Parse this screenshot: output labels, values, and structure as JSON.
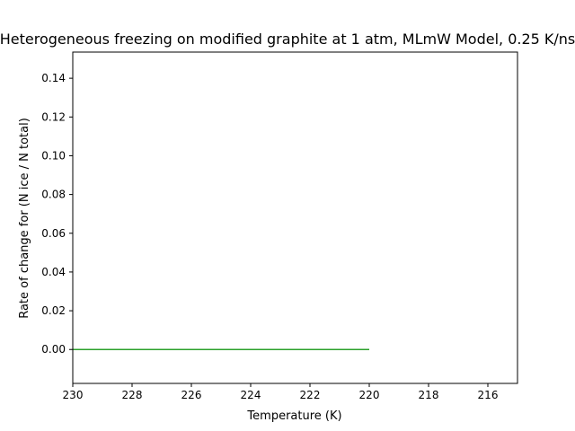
{
  "chart_data": {
    "type": "line",
    "title": "Heterogeneous freezing on modified graphite at 1 atm, MLmW Model, 0.25 K/ns",
    "xlabel": "Temperature (K)",
    "ylabel": "Rate of change for (N ice / N total)",
    "xlim": [
      230,
      215
    ],
    "ylim": [
      -0.0175,
      0.1535
    ],
    "x_inverted": true,
    "xticks": [
      230,
      228,
      226,
      224,
      222,
      220,
      218,
      216
    ],
    "xtick_labels": [
      "230",
      "228",
      "226",
      "224",
      "222",
      "220",
      "218",
      "216"
    ],
    "yticks": [
      0.0,
      0.02,
      0.04,
      0.06,
      0.08,
      0.1,
      0.12,
      0.14
    ],
    "ytick_labels": [
      "0.00",
      "0.02",
      "0.04",
      "0.06",
      "0.08",
      "0.10",
      "0.12",
      "0.14"
    ],
    "grid": false,
    "series": [
      {
        "color": "#2ca02c",
        "x": [
          230,
          220
        ],
        "y": [
          0.0,
          0.0
        ]
      }
    ]
  }
}
